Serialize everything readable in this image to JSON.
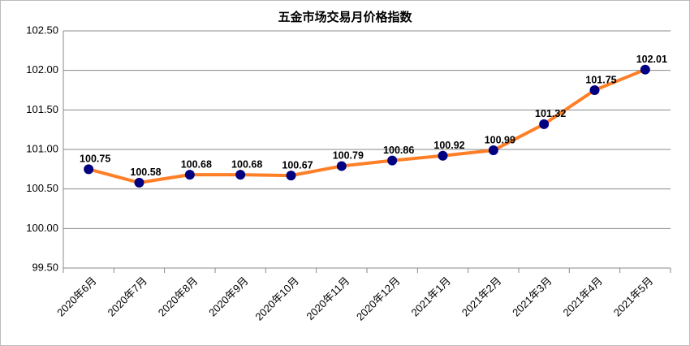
{
  "chart_data": {
    "type": "line",
    "title": "五金市场交易月价格指数",
    "categories": [
      "2020年6月",
      "2020年7月",
      "2020年8月",
      "2020年9月",
      "2020年10月",
      "2020年11月",
      "2020年12月",
      "2021年1月",
      "2021年2月",
      "2021年3月",
      "2021年4月",
      "2021年5月"
    ],
    "series": [
      {
        "values": [
          100.75,
          100.58,
          100.68,
          100.68,
          100.67,
          100.79,
          100.86,
          100.92,
          100.99,
          101.32,
          101.75,
          102.01
        ],
        "color": "#ff7f27",
        "marker_color": "#000080"
      }
    ],
    "ylim": [
      99.5,
      102.5
    ],
    "yticks": [
      {
        "value": 99.5,
        "label": "99.50"
      },
      {
        "value": 100,
        "label": "100.00"
      },
      {
        "value": 100.5,
        "label": "100.50"
      },
      {
        "value": 101,
        "label": "101.00"
      },
      {
        "value": 101.5,
        "label": "101.50"
      },
      {
        "value": 102,
        "label": "102.00"
      },
      {
        "value": 102.5,
        "label": "102.50"
      }
    ],
    "grid": true
  }
}
